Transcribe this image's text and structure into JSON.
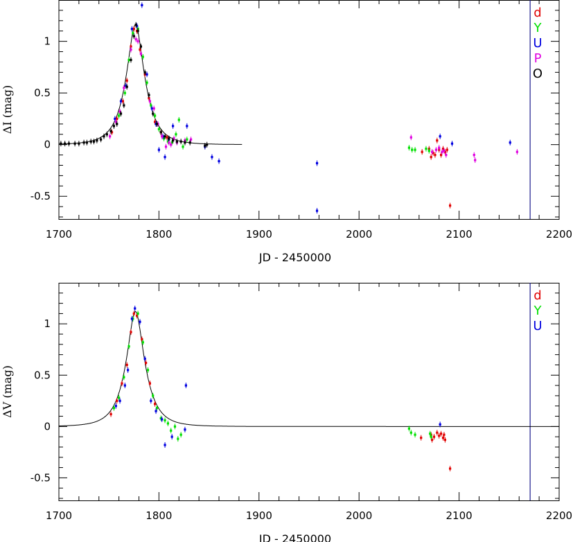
{
  "chart_data": [
    {
      "type": "scatter",
      "xlabel": "JD - 2450000",
      "ylabel": "ΔI (mag)",
      "xlim": [
        1700,
        2200
      ],
      "ylim": [
        -0.72,
        1.4
      ],
      "xticks": [
        "1700",
        "1800",
        "1900",
        "2000",
        "2100",
        "2200"
      ],
      "yticks": [
        "-0.5",
        "0",
        "0.5",
        "1"
      ],
      "vline_x": 2171,
      "legend": [
        "d",
        "Y",
        "U",
        "P",
        "O"
      ],
      "legend_colors": [
        "#e00000",
        "#00e000",
        "#0000e0",
        "#e000e0",
        "#000000"
      ],
      "model_curve": {
        "baseline": 0.0,
        "peak_x": 1776.5,
        "peak_y": 1.16,
        "x_end": 1883
      },
      "series": [
        {
          "name": "d",
          "color": "#e00000",
          "points": [
            [
              1753,
              0.12
            ],
            [
              1758,
              0.25
            ],
            [
              1764,
              0.42
            ],
            [
              1768,
              0.62
            ],
            [
              1772,
              0.95
            ],
            [
              1775,
              1.12
            ],
            [
              1778,
              1.1
            ],
            [
              1781,
              0.92
            ],
            [
              1786,
              0.68
            ],
            [
              1790,
              0.45
            ],
            [
              1796,
              0.22
            ],
            [
              1802,
              0.12
            ],
            [
              1808,
              0.07
            ],
            [
              2063,
              -0.07
            ],
            [
              2070,
              -0.04
            ],
            [
              2072,
              -0.12
            ],
            [
              2074,
              -0.08
            ],
            [
              2076,
              -0.1
            ],
            [
              2078,
              0.04
            ],
            [
              2080,
              -0.05
            ],
            [
              2082,
              -0.1
            ],
            [
              2084,
              -0.04
            ],
            [
              2086,
              -0.07
            ],
            [
              2088,
              -0.05
            ],
            [
              2091,
              -0.59
            ]
          ]
        },
        {
          "name": "Y",
          "color": "#00e000",
          "points": [
            [
              1760,
              0.28
            ],
            [
              1766,
              0.5
            ],
            [
              1770,
              0.82
            ],
            [
              1774,
              1.08
            ],
            [
              1779,
              1.12
            ],
            [
              1784,
              0.85
            ],
            [
              1788,
              0.6
            ],
            [
              1792,
              0.38
            ],
            [
              1796,
              0.28
            ],
            [
              1800,
              0.15
            ],
            [
              1805,
              0.06
            ],
            [
              1809,
              0.03
            ],
            [
              1813,
              0.02
            ],
            [
              1817,
              0.1
            ],
            [
              1820,
              0.24
            ],
            [
              1824,
              -0.02
            ],
            [
              1828,
              0.05
            ],
            [
              2050,
              -0.03
            ],
            [
              2053,
              -0.05
            ],
            [
              2056,
              -0.05
            ],
            [
              2067,
              -0.04
            ],
            [
              2070,
              -0.06
            ]
          ]
        },
        {
          "name": "U",
          "color": "#0000e0",
          "points": [
            [
              1756,
              0.25
            ],
            [
              1762,
              0.42
            ],
            [
              1767,
              0.57
            ],
            [
              1773,
              1.12
            ],
            [
              1778,
              1.15
            ],
            [
              1783,
              1.35
            ],
            [
              1788,
              0.68
            ],
            [
              1793,
              0.35
            ],
            [
              1797,
              0.2
            ],
            [
              1800,
              -0.05
            ],
            [
              1804,
              0.08
            ],
            [
              1806,
              -0.12
            ],
            [
              1810,
              0.05
            ],
            [
              1814,
              0.18
            ],
            [
              1828,
              0.18
            ],
            [
              1846,
              -0.02
            ],
            [
              1853,
              -0.12
            ],
            [
              1860,
              -0.16
            ],
            [
              1958,
              -0.18
            ],
            [
              1958,
              -0.64
            ],
            [
              2081,
              0.08
            ],
            [
              2093,
              0.01
            ],
            [
              2151,
              0.02
            ]
          ]
        },
        {
          "name": "P",
          "color": "#e000e0",
          "points": [
            [
              1751,
              0.08
            ],
            [
              1757,
              0.22
            ],
            [
              1761,
              0.32
            ],
            [
              1765,
              0.55
            ],
            [
              1772,
              0.92
            ],
            [
              1777,
              1.02
            ],
            [
              1779,
              1.0
            ],
            [
              1782,
              0.88
            ],
            [
              1791,
              0.42
            ],
            [
              1795,
              0.35
            ],
            [
              1799,
              0.2
            ],
            [
              1803,
              0.08
            ],
            [
              1807,
              -0.02
            ],
            [
              1810,
              0.02
            ],
            [
              1812,
              0.0
            ],
            [
              1815,
              0.06
            ],
            [
              1818,
              0.02
            ],
            [
              1826,
              0.04
            ],
            [
              1832,
              0.05
            ],
            [
              2052,
              0.07
            ],
            [
              2073,
              -0.07
            ],
            [
              2077,
              -0.05
            ],
            [
              2080,
              -0.03
            ],
            [
              2083,
              -0.07
            ],
            [
              2085,
              -0.06
            ],
            [
              2087,
              -0.1
            ],
            [
              2115,
              -0.1
            ],
            [
              2116,
              -0.15
            ],
            [
              2158,
              -0.07
            ]
          ]
        },
        {
          "name": "O",
          "color": "#000000",
          "points": [
            [
              1702,
              0.01
            ],
            [
              1706,
              0.01
            ],
            [
              1710,
              0.01
            ],
            [
              1716,
              0.01
            ],
            [
              1720,
              0.01
            ],
            [
              1725,
              0.02
            ],
            [
              1728,
              0.02
            ],
            [
              1732,
              0.03
            ],
            [
              1735,
              0.03
            ],
            [
              1738,
              0.04
            ],
            [
              1742,
              0.05
            ],
            [
              1745,
              0.08
            ],
            [
              1748,
              0.1
            ],
            [
              1752,
              0.13
            ],
            [
              1755,
              0.18
            ],
            [
              1758,
              0.2
            ],
            [
              1762,
              0.3
            ],
            [
              1765,
              0.38
            ],
            [
              1768,
              0.56
            ],
            [
              1772,
              0.82
            ],
            [
              1775,
              1.05
            ],
            [
              1777,
              1.16
            ],
            [
              1779,
              1.1
            ],
            [
              1782,
              0.95
            ],
            [
              1786,
              0.7
            ],
            [
              1790,
              0.48
            ],
            [
              1794,
              0.3
            ],
            [
              1798,
              0.2
            ],
            [
              1802,
              0.12
            ],
            [
              1806,
              0.08
            ],
            [
              1810,
              0.06
            ],
            [
              1814,
              0.04
            ],
            [
              1818,
              0.03
            ],
            [
              1822,
              0.03
            ],
            [
              1826,
              0.02
            ],
            [
              1831,
              0.02
            ],
            [
              1846,
              -0.01
            ],
            [
              1848,
              0.0
            ]
          ]
        }
      ]
    },
    {
      "type": "scatter",
      "xlabel": "JD - 2450000",
      "ylabel": "ΔV (mag)",
      "xlim": [
        1700,
        2200
      ],
      "ylim": [
        -0.72,
        1.4
      ],
      "xticks": [
        "1700",
        "1800",
        "1900",
        "2000",
        "2100",
        "2200"
      ],
      "yticks": [
        "-0.5",
        "0",
        "0.5",
        "1"
      ],
      "vline_x": 2171,
      "legend": [
        "d",
        "Y",
        "U"
      ],
      "legend_colors": [
        "#e00000",
        "#00e000",
        "#0000e0"
      ],
      "model_curve": {
        "baseline": 0.0,
        "peak_x": 1776.5,
        "peak_y": 1.12,
        "x_end": 2200
      },
      "series": [
        {
          "name": "d",
          "color": "#e00000",
          "points": [
            [
              1752,
              0.12
            ],
            [
              1758,
              0.25
            ],
            [
              1763,
              0.42
            ],
            [
              1768,
              0.6
            ],
            [
              1772,
              0.92
            ],
            [
              1775,
              1.1
            ],
            [
              1778,
              1.08
            ],
            [
              1783,
              0.85
            ],
            [
              1787,
              0.62
            ],
            [
              1791,
              0.42
            ],
            [
              1796,
              0.22
            ],
            [
              2062,
              -0.11
            ],
            [
              2072,
              -0.08
            ],
            [
              2073,
              -0.13
            ],
            [
              2075,
              -0.1
            ],
            [
              2078,
              -0.06
            ],
            [
              2080,
              -0.09
            ],
            [
              2082,
              -0.07
            ],
            [
              2084,
              -0.11
            ],
            [
              2085,
              -0.08
            ],
            [
              2086,
              -0.13
            ],
            [
              2091,
              -0.41
            ]
          ]
        },
        {
          "name": "Y",
          "color": "#00e000",
          "points": [
            [
              1755,
              0.18
            ],
            [
              1760,
              0.28
            ],
            [
              1765,
              0.48
            ],
            [
              1770,
              0.78
            ],
            [
              1774,
              1.05
            ],
            [
              1779,
              1.1
            ],
            [
              1784,
              0.82
            ],
            [
              1789,
              0.55
            ],
            [
              1794,
              0.3
            ],
            [
              1798,
              0.18
            ],
            [
              1802,
              0.08
            ],
            [
              1806,
              0.06
            ],
            [
              1809,
              0.03
            ],
            [
              1812,
              -0.04
            ],
            [
              1816,
              0.0
            ],
            [
              1819,
              -0.12
            ],
            [
              1822,
              -0.08
            ],
            [
              2050,
              -0.02
            ],
            [
              2052,
              -0.06
            ],
            [
              2056,
              -0.08
            ],
            [
              2071,
              -0.07
            ],
            [
              2072,
              -0.1
            ]
          ]
        },
        {
          "name": "U",
          "color": "#0000e0",
          "points": [
            [
              1757,
              0.2
            ],
            [
              1761,
              0.25
            ],
            [
              1766,
              0.4
            ],
            [
              1769,
              0.55
            ],
            [
              1773,
              1.05
            ],
            [
              1776,
              1.15
            ],
            [
              1781,
              1.02
            ],
            [
              1786,
              0.66
            ],
            [
              1792,
              0.25
            ],
            [
              1797,
              0.15
            ],
            [
              1803,
              0.07
            ],
            [
              1806,
              -0.18
            ],
            [
              1813,
              -0.1
            ],
            [
              1826,
              -0.03
            ],
            [
              1827,
              0.4
            ],
            [
              2081,
              0.02
            ]
          ]
        }
      ]
    }
  ]
}
